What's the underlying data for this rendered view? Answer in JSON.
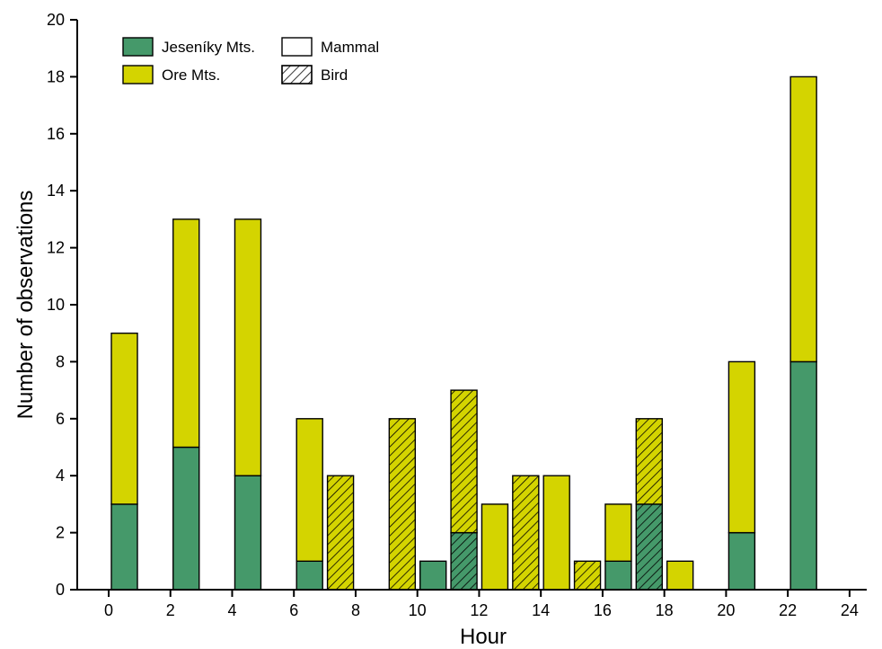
{
  "chart_data": {
    "type": "bar",
    "stacked": true,
    "xlabel": "Hour",
    "ylabel": "Number of observations",
    "xlim": [
      0,
      24
    ],
    "ylim": [
      0,
      20
    ],
    "x_ticks": [
      "0",
      "2",
      "4",
      "6",
      "8",
      "10",
      "12",
      "14",
      "16",
      "18",
      "20",
      "22",
      "24"
    ],
    "y_ticks": [
      "0",
      "2",
      "4",
      "6",
      "8",
      "10",
      "12",
      "14",
      "16",
      "18",
      "20"
    ],
    "grid": false,
    "legend": {
      "placement": "top-left",
      "entries": [
        {
          "label": "Jeseníky Mts.",
          "kind": "fill",
          "color": "#45996a"
        },
        {
          "label": "Ore Mts.",
          "kind": "fill",
          "color": "#d4d400"
        },
        {
          "label": "Mammal",
          "kind": "plain"
        },
        {
          "label": "Bird",
          "kind": "hatched"
        }
      ]
    },
    "colors": {
      "jeseniky": "#45996a",
      "ore": "#d4d400",
      "outline": "#000000"
    },
    "bars": [
      {
        "hour": 0,
        "taxon": "Mammal",
        "jeseniky": 3,
        "ore": 6
      },
      {
        "hour": 2,
        "taxon": "Mammal",
        "jeseniky": 5,
        "ore": 8
      },
      {
        "hour": 4,
        "taxon": "Mammal",
        "jeseniky": 4,
        "ore": 9
      },
      {
        "hour": 6,
        "taxon": "Mammal",
        "jeseniky": 1,
        "ore": 5
      },
      {
        "hour": 7,
        "taxon": "Bird",
        "jeseniky": 0,
        "ore": 4
      },
      {
        "hour": 9,
        "taxon": "Bird",
        "jeseniky": 0,
        "ore": 6
      },
      {
        "hour": 10,
        "taxon": "Mammal",
        "jeseniky": 1,
        "ore": 0
      },
      {
        "hour": 11,
        "taxon": "Bird",
        "jeseniky": 2,
        "ore": 5
      },
      {
        "hour": 12,
        "taxon": "Mammal",
        "jeseniky": 0,
        "ore": 3
      },
      {
        "hour": 13,
        "taxon": "Bird",
        "jeseniky": 0,
        "ore": 4
      },
      {
        "hour": 14,
        "taxon": "Mammal",
        "jeseniky": 0,
        "ore": 4
      },
      {
        "hour": 15,
        "taxon": "Bird",
        "jeseniky": 0,
        "ore": 1
      },
      {
        "hour": 16,
        "taxon": "Mammal",
        "jeseniky": 1,
        "ore": 2
      },
      {
        "hour": 17,
        "taxon": "Bird",
        "jeseniky": 3,
        "ore": 3
      },
      {
        "hour": 18,
        "taxon": "Mammal",
        "jeseniky": 0,
        "ore": 1
      },
      {
        "hour": 20,
        "taxon": "Mammal",
        "jeseniky": 2,
        "ore": 6
      },
      {
        "hour": 22,
        "taxon": "Mammal",
        "jeseniky": 8,
        "ore": 10
      }
    ]
  }
}
